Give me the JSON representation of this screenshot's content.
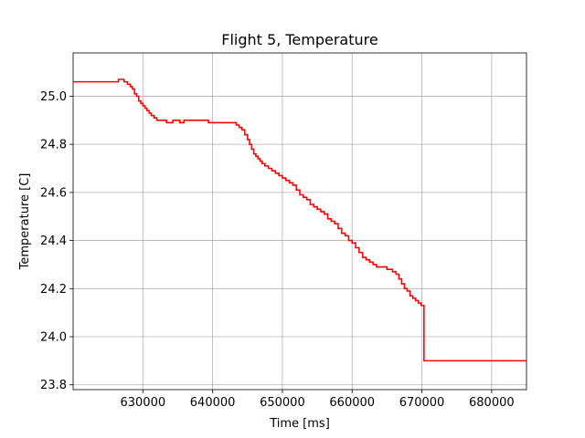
{
  "chart_data": {
    "type": "line",
    "title": "Flight 5, Temperature",
    "xlabel": "Time [ms]",
    "ylabel": "Temperature [C]",
    "xlim": [
      620000,
      685000
    ],
    "ylim": [
      23.78,
      25.18
    ],
    "xticks": [
      630000,
      640000,
      650000,
      660000,
      670000,
      680000
    ],
    "yticks": [
      23.8,
      24.0,
      24.2,
      24.4,
      24.6,
      24.8,
      25.0
    ],
    "ytick_labels": [
      "23.8",
      "24.0",
      "24.2",
      "24.4",
      "24.6",
      "24.8",
      "25.0"
    ],
    "grid": true,
    "series": [
      {
        "color": "#ff0000",
        "step": true,
        "x": [
          620000,
          626500,
          627300,
          627800,
          628200,
          628500,
          628800,
          629100,
          629400,
          629700,
          630000,
          630300,
          630600,
          630900,
          631200,
          631600,
          632000,
          632600,
          633400,
          634300,
          635300,
          635900,
          639400,
          643000,
          643400,
          643800,
          644200,
          644600,
          645000,
          645300,
          645600,
          645900,
          646200,
          646500,
          646800,
          647100,
          647500,
          648000,
          648500,
          649000,
          649500,
          650000,
          650500,
          651000,
          651500,
          652000,
          652500,
          653000,
          653500,
          654000,
          654500,
          655000,
          655500,
          656000,
          656500,
          657000,
          657500,
          658000,
          658500,
          659000,
          659500,
          660000,
          660500,
          661000,
          661500,
          662000,
          662500,
          663000,
          663500,
          664000,
          665000,
          665800,
          666300,
          666700,
          667100,
          667500,
          667900,
          668300,
          668700,
          669100,
          669500,
          669900,
          670300,
          685000
        ],
        "y": [
          25.06,
          25.07,
          25.06,
          25.05,
          25.04,
          25.03,
          25.01,
          25.0,
          24.98,
          24.97,
          24.96,
          24.95,
          24.94,
          24.93,
          24.92,
          24.91,
          24.9,
          24.9,
          24.89,
          24.9,
          24.89,
          24.9,
          24.89,
          24.89,
          24.88,
          24.87,
          24.86,
          24.84,
          24.82,
          24.8,
          24.78,
          24.76,
          24.75,
          24.74,
          24.73,
          24.72,
          24.71,
          24.7,
          24.69,
          24.68,
          24.67,
          24.66,
          24.65,
          24.64,
          24.63,
          24.61,
          24.59,
          24.58,
          24.57,
          24.55,
          24.54,
          24.53,
          24.52,
          24.51,
          24.49,
          24.48,
          24.47,
          24.45,
          24.43,
          24.42,
          24.4,
          24.39,
          24.37,
          24.35,
          24.33,
          24.32,
          24.31,
          24.3,
          24.29,
          24.29,
          24.28,
          24.27,
          24.26,
          24.24,
          24.22,
          24.2,
          24.19,
          24.17,
          24.16,
          24.15,
          24.14,
          24.13,
          23.9,
          23.9
        ]
      }
    ]
  }
}
